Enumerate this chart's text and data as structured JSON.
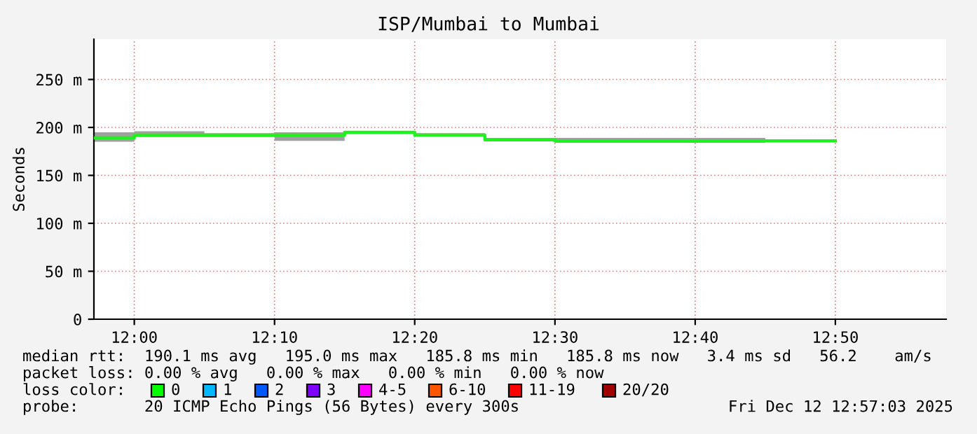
{
  "chart_data": {
    "type": "step",
    "title": "ISP/Mumbai to Mumbai",
    "ylabel": "Seconds",
    "x": [
      11.952,
      12.0,
      12.0833,
      12.1667,
      12.25,
      12.3333,
      12.4167,
      12.5,
      12.5833,
      12.6667,
      12.75,
      12.8333
    ],
    "series": [
      {
        "color": "#20f020",
        "values": [
          189,
          192,
          192,
          192,
          195,
          192,
          187,
          186,
          186,
          186,
          186,
          186
        ],
        "lower": [
          185,
          190,
          190,
          186,
          193,
          191,
          186,
          184,
          184,
          184,
          185,
          185
        ],
        "upper": [
          195,
          196,
          194,
          195,
          196,
          194,
          189,
          189,
          189,
          189,
          187,
          187
        ]
      }
    ],
    "xlim": [
      11.952,
      12.965
    ],
    "xticks": [
      {
        "value": 12.0,
        "label": "12:00"
      },
      {
        "value": 12.1667,
        "label": "12:10"
      },
      {
        "value": 12.3333,
        "label": "12:20"
      },
      {
        "value": 12.5,
        "label": "12:30"
      },
      {
        "value": 12.6667,
        "label": "12:40"
      },
      {
        "value": 12.8333,
        "label": "12:50"
      }
    ],
    "ylim": [
      0,
      292
    ],
    "yticks": [
      0,
      {
        "value": 50,
        "label": "50 m"
      },
      {
        "value": 100,
        "label": "100 m"
      },
      {
        "value": 150,
        "label": "150 m"
      },
      {
        "value": 200,
        "label": "200 m"
      },
      {
        "value": 250,
        "label": "250 m"
      }
    ],
    "grid": true,
    "annotations": [
      "median rtt:  190.1 ms avg   195.0 ms max   185.8 ms min   185.8 ms now   3.4 ms sd   56.2    am/s",
      "packet loss: 0.00 % avg   0.00 % max   0.00 % min   0.00 % now",
      "loss color:",
      "0",
      "1",
      "2",
      "3",
      "4-5",
      "6-10",
      "11-19",
      "20/20",
      "probe:       20 ICMP Echo Pings (56 Bytes) every 300s",
      "Fri Dec 12 12:57:03 2025"
    ]
  }
}
